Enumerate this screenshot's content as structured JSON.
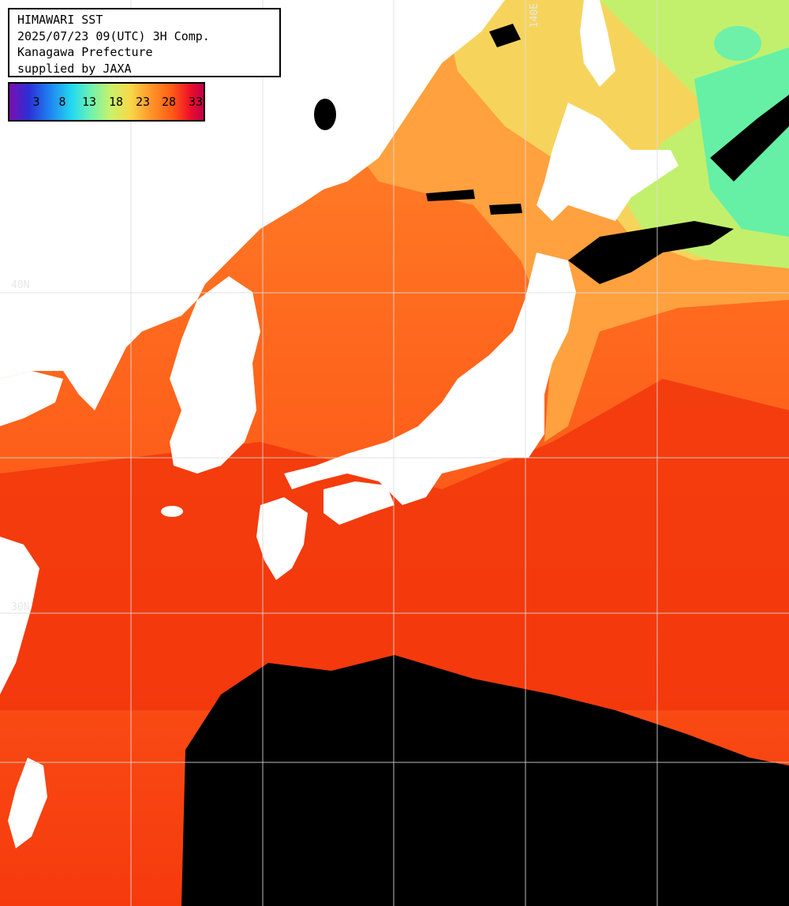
{
  "title_lines": [
    "HIMAWARI SST",
    "2025/07/23 09(UTC) 3H Comp.",
    "Kanagawa Prefecture",
    "supplied by JAXA"
  ],
  "colorbar": {
    "ticks": [
      "3",
      "8",
      "13",
      "18",
      "23",
      "28",
      "33"
    ]
  },
  "grid_labels": {
    "lon_140": "140E",
    "lat_40": "40N",
    "lat_30": "30N"
  },
  "colors": {
    "warm_sea": "#ff5a14",
    "hot_sea": "#f0340c",
    "mild_sea": "#ff9a3a",
    "cool_sea": "#f4d65a",
    "cold_sea": "#bff06a",
    "coldest_sea": "#5ef0a0",
    "land": "#ffffff",
    "cloud": "#000000",
    "grid": "#dddddd"
  }
}
